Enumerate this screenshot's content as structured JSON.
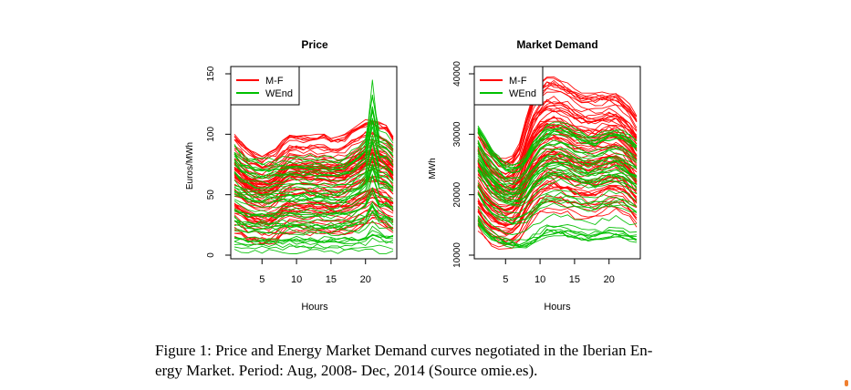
{
  "figure": {
    "caption_line1": "Figure 1: Price and Energy Market Demand curves negotiated in the Iberian En-",
    "caption_line2": "ergy Market. Period: Aug, 2008- Dec, 2014 (Source omie.es)."
  },
  "colors": {
    "weekday": "#ff0000",
    "weekend": "#00c000"
  },
  "chart_data": [
    {
      "type": "line",
      "title": "Price",
      "xlabel": "Hours",
      "ylabel": "Euros/MWh",
      "xlim": [
        1,
        24
      ],
      "ylim": [
        0,
        150
      ],
      "xticks": [
        5,
        10,
        15,
        20
      ],
      "yticks": [
        0,
        50,
        100,
        150
      ],
      "legend": {
        "position": "top-left",
        "entries": [
          "M-F",
          "WEnd"
        ]
      },
      "series": [
        {
          "name": "M-F",
          "color": "#ff0000",
          "typical_profile": [
            55,
            50,
            47,
            45,
            44,
            45,
            50,
            60,
            63,
            63,
            62,
            62,
            62,
            61,
            58,
            56,
            57,
            60,
            63,
            66,
            70,
            68,
            62,
            58
          ],
          "band_low": [
            10,
            8,
            5,
            4,
            3,
            3,
            5,
            10,
            12,
            12,
            12,
            11,
            11,
            10,
            10,
            10,
            10,
            12,
            15,
            18,
            22,
            20,
            15,
            12
          ],
          "band_high": [
            100,
            95,
            88,
            85,
            82,
            85,
            88,
            95,
            100,
            100,
            99,
            100,
            100,
            100,
            98,
            98,
            100,
            105,
            108,
            112,
            112,
            110,
            108,
            100
          ]
        },
        {
          "name": "WEnd",
          "color": "#00c000",
          "typical_profile": [
            45,
            40,
            38,
            36,
            35,
            34,
            33,
            34,
            35,
            35,
            34,
            33,
            32,
            31,
            30,
            30,
            31,
            33,
            36,
            40,
            42,
            42,
            40,
            38
          ],
          "band_low": [
            0,
            0,
            0,
            0,
            0,
            0,
            0,
            0,
            0,
            0,
            0,
            0,
            0,
            0,
            0,
            0,
            0,
            0,
            0,
            0,
            0,
            0,
            0,
            0
          ],
          "band_high": [
            100,
            92,
            88,
            86,
            85,
            86,
            86,
            87,
            88,
            88,
            88,
            88,
            88,
            87,
            86,
            86,
            88,
            92,
            98,
            105,
            145,
            110,
            108,
            100
          ]
        }
      ]
    },
    {
      "type": "line",
      "title": "Market Demand",
      "xlabel": "Hours",
      "ylabel": "MWh",
      "xlim": [
        1,
        24
      ],
      "ylim": [
        10000,
        40000
      ],
      "xticks": [
        5,
        10,
        15,
        20
      ],
      "yticks": [
        10000,
        20000,
        30000,
        40000
      ],
      "legend": {
        "position": "top-left",
        "entries": [
          "M-F",
          "WEnd"
        ]
      },
      "series": [
        {
          "name": "M-F",
          "color": "#ff0000",
          "typical_profile": [
            25000,
            23500,
            22500,
            22000,
            21500,
            21800,
            23500,
            26500,
            28500,
            29500,
            30000,
            30200,
            30000,
            29500,
            28800,
            28500,
            28500,
            28800,
            29200,
            29800,
            30000,
            29500,
            28000,
            26500
          ],
          "band_low": [
            14000,
            12500,
            11500,
            11000,
            10800,
            11000,
            12000,
            14000,
            15500,
            16500,
            17000,
            17000,
            16800,
            16500,
            16000,
            15800,
            15800,
            16000,
            16500,
            16800,
            17000,
            16800,
            15800,
            14500
          ],
          "band_high": [
            31000,
            29000,
            27500,
            26500,
            26000,
            26500,
            28500,
            33000,
            36500,
            38500,
            39500,
            39500,
            39000,
            38500,
            37500,
            37000,
            36800,
            36800,
            37000,
            37200,
            37000,
            36000,
            35000,
            33000
          ]
        },
        {
          "name": "WEnd",
          "color": "#00c000",
          "typical_profile": [
            23000,
            21500,
            20500,
            19500,
            19000,
            18500,
            18500,
            19000,
            20000,
            21000,
            21500,
            21800,
            21800,
            21500,
            21000,
            20500,
            20200,
            20300,
            20800,
            21300,
            21500,
            21200,
            20300,
            19500
          ],
          "band_low": [
            15000,
            13500,
            12500,
            12000,
            11500,
            11200,
            11000,
            11200,
            11800,
            12500,
            13000,
            13200,
            13200,
            13000,
            12800,
            12500,
            12300,
            12400,
            12600,
            12800,
            13000,
            12800,
            12300,
            12000
          ],
          "band_high": [
            32000,
            30000,
            28000,
            26500,
            25500,
            25000,
            25500,
            27000,
            29000,
            30500,
            31500,
            32000,
            32000,
            31800,
            31000,
            30500,
            30000,
            30000,
            30500,
            31000,
            31200,
            30800,
            30000,
            29000
          ]
        }
      ]
    }
  ]
}
